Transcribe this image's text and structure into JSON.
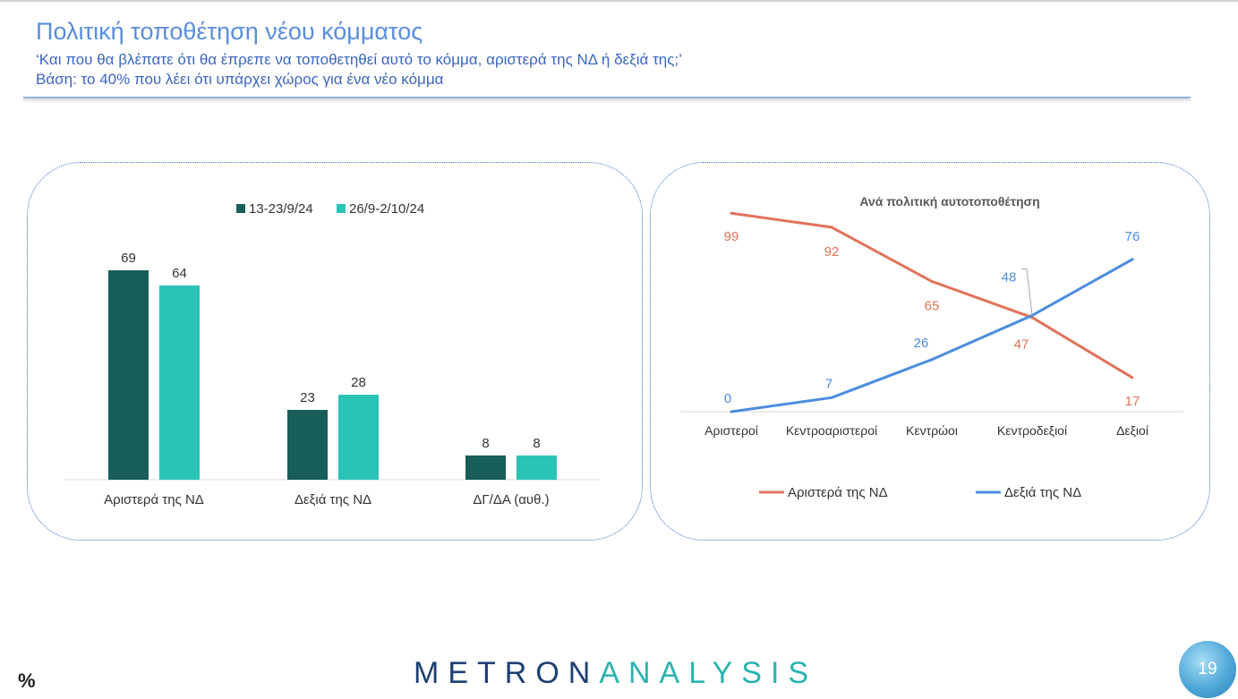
{
  "header": {
    "title": "Πολιτική τοποθέτηση νέου κόμματος",
    "question": "‘Και που θα βλέπατε ότι θα έπρεπε να τοποθετηθεί αυτό το κόμμα, αριστερά της ΝΔ ή δεξιά της;’",
    "base": "Βάση: το 40% που λέει ότι υπάρχει χώρος για ένα νέο κόμμα"
  },
  "chart_data": [
    {
      "type": "bar",
      "categories": [
        "Αριστερά της ΝΔ",
        "Δεξιά της ΝΔ",
        "ΔΓ/ΔΑ (αυθ.)"
      ],
      "series": [
        {
          "name": "13-23/9/24",
          "values": [
            69,
            23,
            8
          ],
          "color": "#175e58"
        },
        {
          "name": "26/9-2/10/24",
          "values": [
            64,
            28,
            8
          ],
          "color": "#2bc3b5"
        }
      ],
      "ylim": [
        0,
        69
      ],
      "legend_position": "top",
      "grid": false
    },
    {
      "type": "line",
      "title": "Ανά πολιτική αυτοτοποθέτηση",
      "categories": [
        "Αριστεροί",
        "Κεντροαριστεροί",
        "Κεντρώοι",
        "Κεντροδεξιοί",
        "Δεξιοί"
      ],
      "series": [
        {
          "name": "Αριστερά της ΝΔ",
          "values": [
            99,
            92,
            65,
            47,
            17
          ],
          "color": "#e2735a"
        },
        {
          "name": "Δεξιά της ΝΔ",
          "values": [
            0,
            7,
            26,
            48,
            76
          ],
          "color": "#4b8ddf"
        }
      ],
      "ylim": [
        0,
        100
      ],
      "legend_position": "bottom",
      "grid": false
    }
  ],
  "footer": {
    "unit": "%",
    "brand_part1": "METRON",
    "brand_part2": "ANALYSIS",
    "page_number": "19"
  }
}
